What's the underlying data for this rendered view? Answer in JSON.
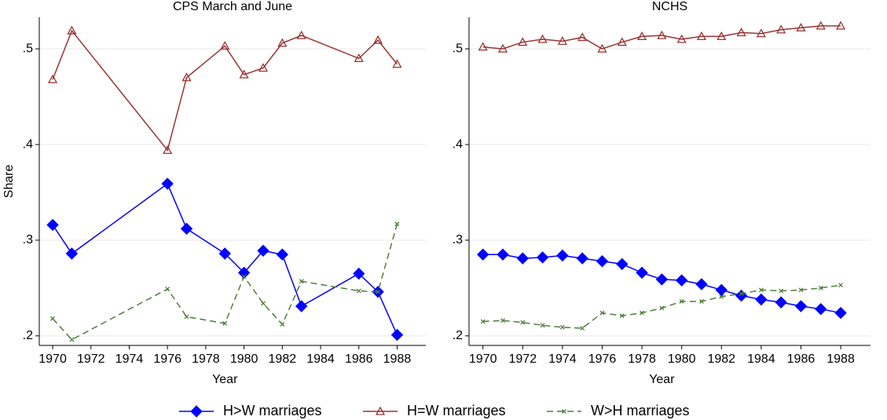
{
  "chart_data": [
    {
      "type": "line",
      "title": "CPS March and June",
      "xlabel": "Year",
      "ylabel": "Share",
      "x": [
        1970,
        1971,
        1976,
        1977,
        1979,
        1980,
        1981,
        1982,
        1983,
        1986,
        1987,
        1988
      ],
      "series": [
        {
          "name": "H>W marriages",
          "color": "#0000ff",
          "marker": "diamond",
          "dash": false,
          "values": [
            0.316,
            0.286,
            0.359,
            0.312,
            0.286,
            0.266,
            0.289,
            0.285,
            0.231,
            0.265,
            0.246,
            0.201
          ]
        },
        {
          "name": "H=W marriages",
          "color": "#993333",
          "marker": "triangle",
          "dash": false,
          "values": [
            0.468,
            0.519,
            0.394,
            0.47,
            0.503,
            0.473,
            0.48,
            0.506,
            0.514,
            0.49,
            0.509,
            0.484
          ]
        },
        {
          "name": "W>H marriages",
          "color": "#4f7d3a",
          "marker": "x",
          "dash": true,
          "values": [
            0.218,
            0.196,
            0.249,
            0.22,
            0.213,
            0.262,
            0.234,
            0.212,
            0.257,
            0.247,
            0.246,
            0.317
          ]
        }
      ],
      "xlim": [
        1969.3,
        1989.5
      ],
      "xticks": [
        1970,
        1972,
        1974,
        1976,
        1978,
        1980,
        1982,
        1984,
        1986,
        1988
      ],
      "ylim": [
        0.19,
        0.533
      ],
      "yticks": [
        {
          "value": 0.2,
          "label": ".2"
        },
        {
          "value": 0.3,
          "label": ".3"
        },
        {
          "value": 0.4,
          "label": ".4"
        },
        {
          "value": 0.5,
          "label": ".5"
        }
      ],
      "grid": true
    },
    {
      "type": "line",
      "title": "NCHS",
      "xlabel": "Year",
      "x": [
        1970,
        1971,
        1972,
        1973,
        1974,
        1975,
        1976,
        1977,
        1978,
        1979,
        1980,
        1981,
        1982,
        1983,
        1984,
        1985,
        1986,
        1987,
        1988
      ],
      "series": [
        {
          "color": "#0000ff",
          "marker": "diamond",
          "dash": false,
          "values": [
            0.285,
            0.285,
            0.281,
            0.282,
            0.284,
            0.281,
            0.278,
            0.275,
            0.266,
            0.259,
            0.258,
            0.254,
            0.248,
            0.242,
            0.238,
            0.235,
            0.231,
            0.228,
            0.224
          ]
        },
        {
          "color": "#993333",
          "marker": "triangle",
          "dash": false,
          "values": [
            0.502,
            0.5,
            0.507,
            0.51,
            0.508,
            0.512,
            0.5,
            0.507,
            0.513,
            0.514,
            0.51,
            0.513,
            0.513,
            0.517,
            0.516,
            0.52,
            0.522,
            0.524,
            0.524
          ]
        },
        {
          "color": "#4f7d3a",
          "marker": "x",
          "dash": true,
          "values": [
            0.215,
            0.216,
            0.214,
            0.211,
            0.209,
            0.208,
            0.224,
            0.221,
            0.224,
            0.229,
            0.236,
            0.236,
            0.241,
            0.244,
            0.248,
            0.247,
            0.248,
            0.25,
            0.253
          ]
        }
      ],
      "xlim": [
        1969.3,
        1989.5
      ],
      "xticks": [
        1970,
        1972,
        1974,
        1976,
        1978,
        1980,
        1982,
        1984,
        1986,
        1988
      ],
      "ylim": [
        0.19,
        0.533
      ],
      "yticks": [
        {
          "value": 0.2,
          "label": ".2"
        },
        {
          "value": 0.3,
          "label": ".3"
        },
        {
          "value": 0.4,
          "label": ".4"
        },
        {
          "value": 0.5,
          "label": ".5"
        }
      ],
      "grid": true
    }
  ]
}
